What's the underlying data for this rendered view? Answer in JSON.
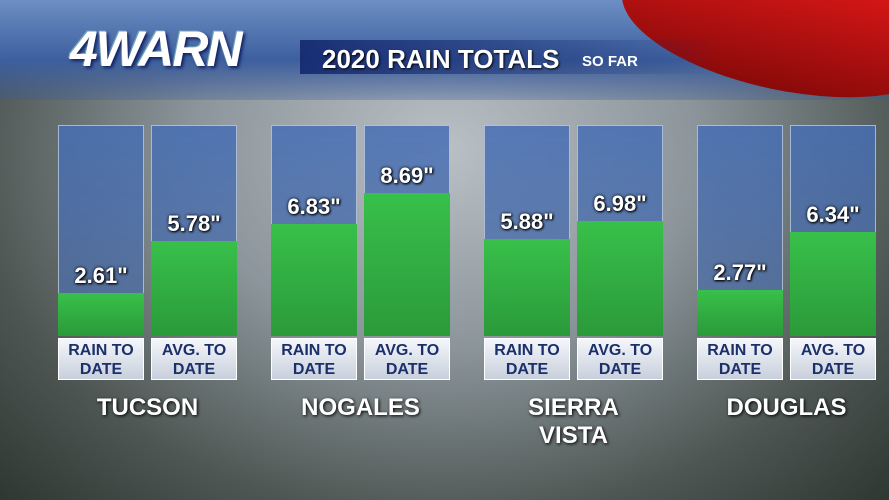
{
  "logo": "4WARN",
  "chart_data": {
    "type": "bar",
    "title": "2020 RAIN TOTALS",
    "subtitle": "SO FAR",
    "categories": [
      "TUCSON",
      "NOGALES",
      "SIERRA VISTA",
      "DOUGLAS"
    ],
    "series": [
      {
        "name": "RAIN TO DATE",
        "color": "#38c04a",
        "values": [
          2.61,
          6.83,
          5.88,
          2.77
        ],
        "value_labels": [
          "2.61\"",
          "6.83\"",
          "5.88\"",
          "2.77\""
        ]
      },
      {
        "name": "AVG. TO DATE",
        "color": "#38c04a",
        "values": [
          5.78,
          8.69,
          6.98,
          6.34
        ],
        "value_labels": [
          "5.78\"",
          "8.69\"",
          "6.98\"",
          "6.34\""
        ]
      }
    ]
  }
}
